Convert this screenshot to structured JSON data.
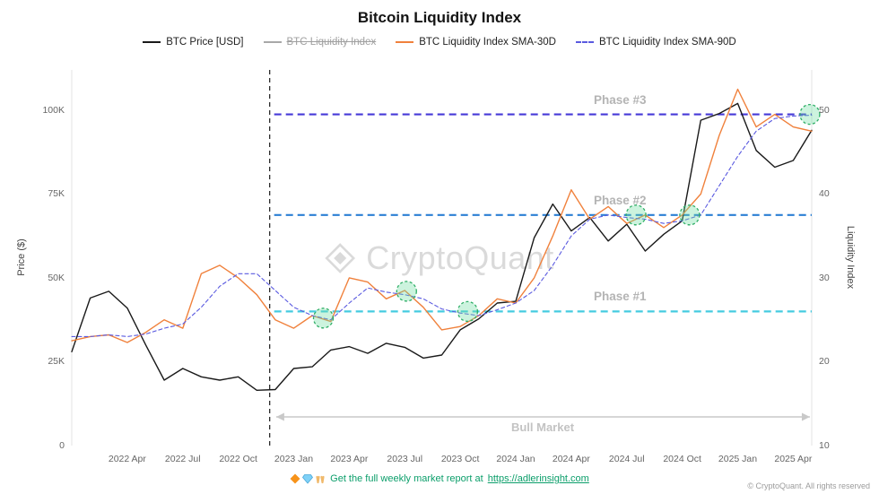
{
  "legend": [
    {
      "label": "BTC Price [USD]",
      "color": "#1a1a1a",
      "style": "solid",
      "disabled": false
    },
    {
      "label": "BTC Liquidity Index",
      "color": "#a8a8a8",
      "style": "solid",
      "disabled": true
    },
    {
      "label": "BTC Liquidity Index SMA-30D",
      "color": "#f0813c",
      "style": "solid",
      "disabled": false
    },
    {
      "label": "BTC Liquidity Index SMA-90D",
      "color": "#5a5ae0",
      "style": "dashed",
      "disabled": false
    }
  ],
  "chart_data": {
    "type": "line",
    "title": "Bitcoin Liquidity Index",
    "ylabel_left": "Price ($)",
    "ylabel_right": "Liquidity Index",
    "left_ticks": [
      "0",
      "25K",
      "50K",
      "75K",
      "100K"
    ],
    "left_tick_values": [
      0,
      25,
      50,
      75,
      100
    ],
    "right_ticks": [
      "10",
      "20",
      "30",
      "40",
      "50"
    ],
    "right_tick_values": [
      10,
      20,
      30,
      40,
      50
    ],
    "x_ticks": [
      "2022 Apr",
      "2022 Jul",
      "2022 Oct",
      "2023 Jan",
      "2023 Apr",
      "2023 Jul",
      "2023 Oct",
      "2024 Jan",
      "2024 Apr",
      "2024 Jul",
      "2024 Oct",
      "2025 Jan",
      "2025 Apr"
    ],
    "price_range_k": [
      0,
      112
    ],
    "liquidity_range": [
      10,
      54.8
    ],
    "grid": false,
    "legend_position": "top",
    "categories": [
      "2022-01",
      "2022-02",
      "2022-03",
      "2022-04",
      "2022-05",
      "2022-06",
      "2022-07",
      "2022-08",
      "2022-09",
      "2022-10",
      "2022-11",
      "2022-12",
      "2023-01",
      "2023-02",
      "2023-03",
      "2023-04",
      "2023-05",
      "2023-06",
      "2023-07",
      "2023-08",
      "2023-09",
      "2023-10",
      "2023-11",
      "2023-12",
      "2024-01",
      "2024-02",
      "2024-03",
      "2024-04",
      "2024-05",
      "2024-06",
      "2024-07",
      "2024-08",
      "2024-09",
      "2024-10",
      "2024-11",
      "2024-12",
      "2025-01",
      "2025-02",
      "2025-03",
      "2025-04",
      "2025-05"
    ],
    "series": [
      {
        "name": "BTC Price [USD]",
        "axis": "price",
        "unit": "K USD",
        "color": "#1a1a1a",
        "dash": false,
        "width": 1.4,
        "values": [
          28,
          44,
          46,
          41,
          30,
          19.5,
          23,
          20.5,
          19.5,
          20.5,
          16.5,
          16.7,
          23,
          23.5,
          28.5,
          29.5,
          27.5,
          30.5,
          29.3,
          26.1,
          27,
          34.5,
          37.8,
          42.5,
          43,
          62,
          72,
          64,
          68,
          61,
          66,
          58,
          63,
          67,
          97,
          99,
          102,
          88,
          83,
          85,
          94
        ]
      },
      {
        "name": "BTC Liquidity Index SMA-30D",
        "axis": "liquidity",
        "color": "#f0813c",
        "dash": false,
        "width": 1.4,
        "values": [
          22.5,
          23,
          23.2,
          22.3,
          23.5,
          25,
          24,
          30.5,
          31.5,
          30,
          28,
          25,
          24,
          25.5,
          24.8,
          30,
          29.5,
          27.5,
          28.5,
          26.5,
          23.8,
          24.2,
          25.5,
          27.5,
          27,
          30,
          35,
          40.5,
          37,
          38.5,
          36.5,
          37.5,
          36,
          37.5,
          40,
          47,
          52.5,
          48,
          49.5,
          48,
          47.5
        ]
      },
      {
        "name": "BTC Liquidity Index SMA-90D",
        "axis": "liquidity",
        "color": "#5a5ae0",
        "dash": true,
        "width": 1.1,
        "values": [
          23,
          23,
          23.2,
          23,
          23.3,
          24,
          24.5,
          26.5,
          29,
          30.5,
          30.5,
          28.5,
          26.5,
          25.5,
          25,
          27,
          28.8,
          28.3,
          28,
          27.5,
          26.3,
          25.8,
          25.5,
          26.2,
          27,
          28.5,
          31.5,
          35,
          37,
          37.5,
          37.2,
          37,
          36.5,
          36.8,
          37.5,
          41,
          44.5,
          47.5,
          49,
          49.3,
          49.4
        ]
      }
    ],
    "phases": [
      {
        "label": "Phase #1",
        "level": 26,
        "color": "#45cbe0"
      },
      {
        "label": "Phase #2",
        "level": 37.5,
        "color": "#2b7fd4"
      },
      {
        "label": "Phase #3",
        "level": 49.5,
        "color": "#4639d8"
      }
    ],
    "event_line": {
      "month_index": 10.7
    },
    "bull_market": {
      "label": "Bull Market",
      "from_index": 11.05,
      "to_index": 39.9
    },
    "highlights": [
      {
        "month_index": 13.6,
        "level": 25.2
      },
      {
        "month_index": 18.1,
        "level": 28.4
      },
      {
        "month_index": 21.4,
        "level": 26.0
      },
      {
        "month_index": 30.5,
        "level": 37.5
      },
      {
        "month_index": 33.4,
        "level": 37.5
      },
      {
        "month_index": 39.9,
        "level": 49.5
      }
    ],
    "highlight_color": "#2fae66",
    "watermark": "CryptoQuant"
  },
  "footer": {
    "promo_text": "Get the full weekly market report at",
    "promo_link": "https://adlerinsight.com",
    "icons": [
      "orange-diamond-icon",
      "gem-icon",
      "raised-hands-icon"
    ],
    "copyright": "© CryptoQuant. All rights reserved"
  }
}
